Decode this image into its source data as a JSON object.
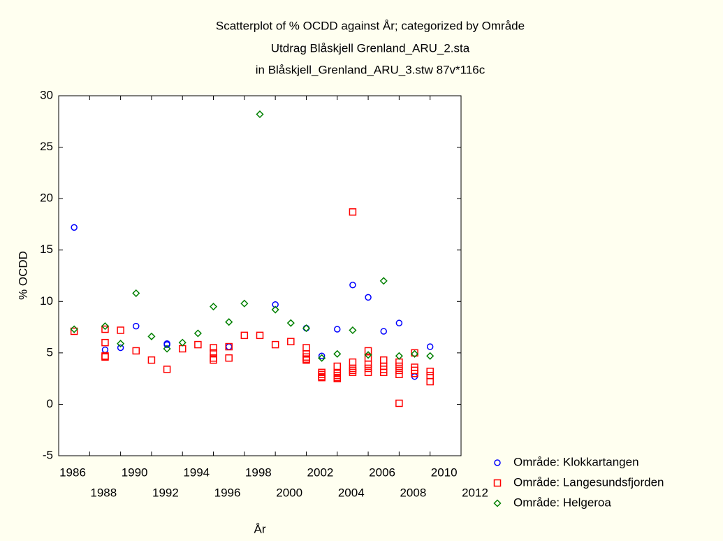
{
  "chart_data": {
    "type": "scatter",
    "title": "Scatterplot of % OCDD against År; categorized by Område",
    "subtitle": [
      "Utdrag Blåskjell Grenland_ARU_2.sta",
      "in Blåskjell_Grenland_ARU_3.stw 87v*116c"
    ],
    "xlabel": "År",
    "ylabel": "% OCDD",
    "xlim": [
      1986,
      2012
    ],
    "xticks": [
      1986,
      1988,
      1990,
      1992,
      1994,
      1996,
      1998,
      2000,
      2002,
      2004,
      2006,
      2008,
      2010,
      2012
    ],
    "ylim": [
      -5,
      30
    ],
    "yticks": [
      -5,
      0,
      5,
      10,
      15,
      20,
      25,
      30
    ],
    "grid": false,
    "legend": "lower right",
    "series": [
      {
        "name": "Område: Klokkartangen",
        "color": "#0000ff",
        "marker": "circle",
        "x": [
          1987,
          1989,
          1990,
          1991,
          1993,
          1993,
          1997,
          2000,
          2002,
          2003,
          2004,
          2005,
          2006,
          2007,
          2008,
          2009,
          2010
        ],
        "values": [
          17.2,
          5.3,
          5.5,
          7.6,
          5.9,
          5.8,
          5.6,
          9.7,
          7.4,
          4.7,
          7.3,
          11.6,
          10.4,
          7.1,
          7.9,
          2.7,
          5.6
        ]
      },
      {
        "name": "Område: Langesundsfjorden",
        "color": "#ff0000",
        "marker": "square",
        "x": [
          1987,
          1989,
          1989,
          1989,
          1989,
          1990,
          1991,
          1992,
          1993,
          1994,
          1995,
          1996,
          1996,
          1996,
          1996,
          1997,
          1997,
          1998,
          1999,
          2000,
          2001,
          2002,
          2002,
          2002,
          2002,
          2002,
          2003,
          2003,
          2003,
          2003,
          2004,
          2004,
          2004,
          2004,
          2004,
          2005,
          2005,
          2005,
          2005,
          2005,
          2006,
          2006,
          2006,
          2006,
          2006,
          2007,
          2007,
          2007,
          2007,
          2008,
          2008,
          2008,
          2008,
          2008,
          2009,
          2009,
          2009,
          2009,
          2010,
          2010,
          2010
        ],
        "values": [
          7.1,
          7.3,
          6.0,
          4.7,
          4.6,
          7.2,
          5.2,
          4.3,
          3.4,
          5.4,
          5.8,
          5.5,
          5.0,
          4.5,
          4.3,
          4.5,
          5.6,
          6.7,
          6.7,
          5.8,
          6.1,
          5.5,
          4.9,
          4.6,
          4.4,
          4.3,
          3.1,
          2.9,
          2.7,
          2.6,
          3.7,
          3.0,
          2.8,
          2.6,
          2.5,
          18.7,
          4.1,
          3.5,
          3.3,
          3.1,
          5.2,
          4.5,
          3.9,
          3.5,
          3.1,
          4.3,
          3.7,
          3.4,
          3.1,
          4.1,
          3.7,
          3.3,
          2.9,
          0.1,
          5.0,
          3.6,
          3.3,
          3.0,
          3.2,
          2.8,
          2.2
        ]
      },
      {
        "name": "Område: Helgeroa",
        "color": "#008000",
        "marker": "diamond",
        "x": [
          1987,
          1989,
          1990,
          1991,
          1992,
          1993,
          1994,
          1995,
          1996,
          1997,
          1998,
          1999,
          2000,
          2001,
          2002,
          2003,
          2004,
          2005,
          2006,
          2007,
          2008,
          2009,
          2010
        ],
        "values": [
          7.3,
          7.6,
          5.9,
          10.8,
          6.6,
          5.4,
          6.0,
          6.9,
          9.5,
          8.0,
          9.8,
          28.2,
          9.2,
          7.9,
          7.4,
          4.5,
          4.9,
          7.2,
          4.8,
          12.0,
          4.7,
          4.9,
          4.7
        ]
      }
    ]
  }
}
